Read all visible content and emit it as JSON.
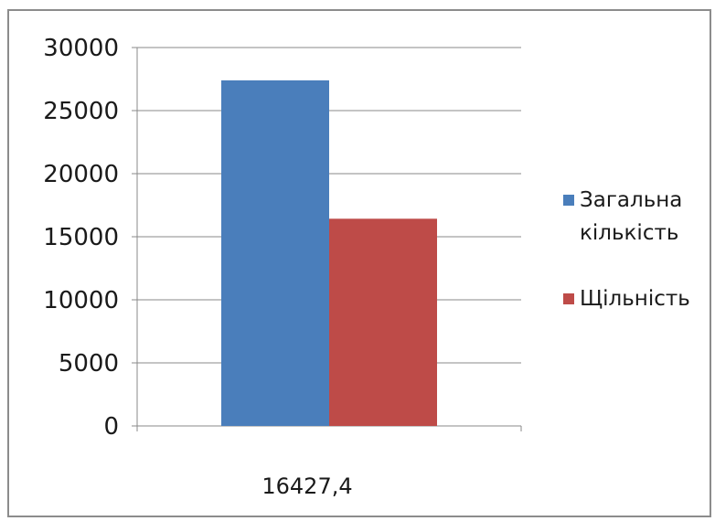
{
  "chart_data": {
    "type": "bar",
    "categories": [
      "16427,4"
    ],
    "series": [
      {
        "name": "Загальна кількість",
        "values": [
          27400
        ],
        "color": "#4a7ebb"
      },
      {
        "name": "Щільність",
        "values": [
          16427.4
        ],
        "color": "#be4b48"
      }
    ],
    "ylim": [
      0,
      30000
    ],
    "yticks": [
      "0",
      "5000",
      "10000",
      "15000",
      "20000",
      "25000",
      "30000"
    ],
    "grid": true,
    "legend": "right",
    "legend_lines": [
      [
        "Загальна",
        "кількість"
      ],
      [
        "Щільність"
      ]
    ]
  }
}
